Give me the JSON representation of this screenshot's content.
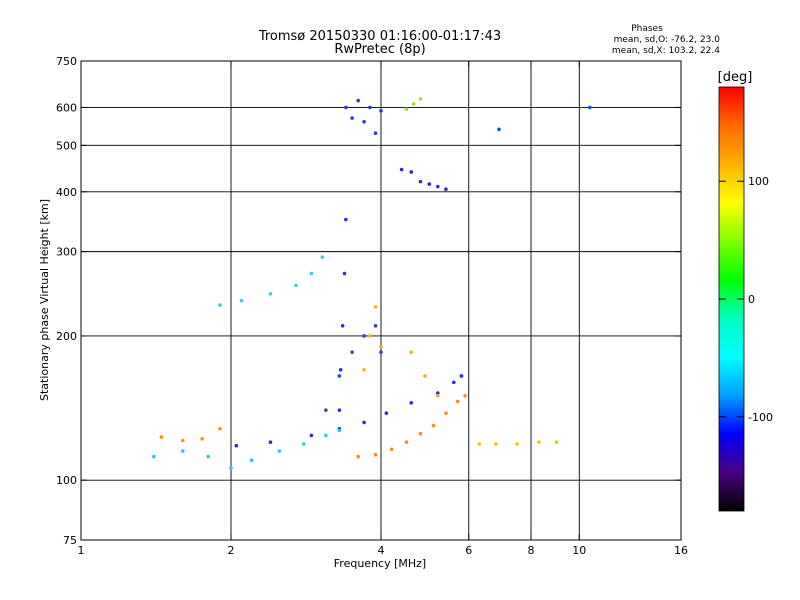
{
  "chart_data": {
    "type": "scatter",
    "title": "Tromsø 20150330 01:16:00-01:17:43",
    "subtitle": "RwPretec (8p)",
    "xlabel": "Frequency [MHz]",
    "ylabel": "Stationary phase Virtual Height [km]",
    "x_scale": "log",
    "y_scale": "log",
    "xlim": [
      1,
      16
    ],
    "ylim": [
      75,
      750
    ],
    "x_ticks": [
      1,
      2,
      4,
      6,
      8,
      10,
      16
    ],
    "x_tick_labels": [
      "1",
      "2",
      "4",
      "6",
      "8",
      "10",
      "16"
    ],
    "y_ticks": [
      75,
      100,
      200,
      300,
      400,
      500,
      600,
      750
    ],
    "y_tick_labels": [
      "75",
      "100",
      "200",
      "300",
      "400",
      "500",
      "600",
      "750"
    ],
    "grid": true,
    "legend": {
      "title": "Phases",
      "entries": [
        "mean, sd,O: -76.2, 23.0",
        "mean, sd,X: 103.2, 22.4"
      ],
      "position": "top-right"
    },
    "colorbar": {
      "label": "[deg]",
      "range": [
        -180,
        180
      ],
      "ticks": [
        100,
        0,
        -100
      ],
      "tick_labels": [
        "100",
        "0",
        "-100"
      ],
      "colormap": "rainbow",
      "stops": [
        "#ff0000",
        "#ff6a00",
        "#ffb000",
        "#ffff00",
        "#7fff00",
        "#00ff00",
        "#00ffc0",
        "#00ffff",
        "#00a0ff",
        "#0000ff",
        "#4b0082",
        "#000000"
      ]
    },
    "traces": [
      {
        "name": "",
        "phase": -100,
        "color": "#2929e6",
        "x": [
          2.05,
          2.4,
          2.9,
          3.3,
          3.7,
          4.1,
          4.6,
          5.2,
          5.6,
          5.8
        ],
        "y": [
          118,
          120,
          124,
          128,
          132,
          138,
          145,
          152,
          160,
          165
        ]
      },
      {
        "name": "",
        "phase": -30,
        "color": "#33c6e8",
        "x": [
          1.4,
          1.6,
          1.8,
          2.0,
          2.2,
          2.5,
          2.8,
          3.1,
          3.3
        ],
        "y": [
          112,
          115,
          112,
          106,
          110,
          115,
          119,
          124,
          127
        ]
      },
      {
        "name": "",
        "phase": 140,
        "color": "#ff8c1a",
        "x": [
          3.6,
          3.9,
          4.2,
          4.5,
          4.8,
          5.1,
          5.4,
          5.7,
          5.9
        ],
        "y": [
          112,
          113,
          116,
          120,
          125,
          130,
          138,
          146,
          150
        ]
      },
      {
        "name": "",
        "phase": 130,
        "color": "#ff8c1a",
        "x": [
          1.45,
          1.6,
          1.75,
          1.9
        ],
        "y": [
          123,
          121,
          122,
          128
        ]
      },
      {
        "name": "",
        "phase": 100,
        "color": "#f5c400",
        "x": [
          6.3,
          6.8,
          7.5,
          8.3,
          9.0
        ],
        "y": [
          119,
          119,
          119,
          120,
          120
        ]
      },
      {
        "name": "",
        "phase": -100,
        "color": "#1c32e0",
        "x": [
          3.3,
          3.32,
          3.35,
          3.38,
          3.4
        ],
        "y": [
          140,
          170,
          210,
          270,
          350
        ]
      },
      {
        "name": "",
        "phase": -100,
        "color": "#3a3ad6",
        "x": [
          3.1,
          3.3,
          3.5,
          3.7,
          3.9,
          4.0
        ],
        "y": [
          140,
          165,
          185,
          200,
          210,
          185
        ]
      },
      {
        "name": "",
        "phase": 110,
        "color": "#f2b21c",
        "x": [
          3.7,
          3.8,
          3.9,
          4.0,
          4.6,
          4.9,
          5.2
        ],
        "y": [
          170,
          200,
          230,
          190,
          185,
          165,
          150
        ]
      },
      {
        "name": "",
        "phase": -20,
        "color": "#39cfe0",
        "x": [
          1.9,
          2.1,
          2.4,
          2.7,
          2.9,
          3.05
        ],
        "y": [
          232,
          237,
          245,
          255,
          270,
          292
        ]
      },
      {
        "name": "",
        "phase": -80,
        "color": "#1f3ee0",
        "x": [
          3.4,
          3.5,
          3.6,
          3.7,
          3.8,
          3.9,
          4.0
        ],
        "y": [
          600,
          570,
          620,
          560,
          600,
          530,
          590
        ]
      },
      {
        "name": "",
        "phase": 40,
        "color": "#9ae03a",
        "x": [
          4.5,
          4.65,
          4.8
        ],
        "y": [
          595,
          610,
          625
        ]
      },
      {
        "name": "",
        "phase": -110,
        "color": "#2a2ad0",
        "x": [
          4.4,
          4.6,
          4.8,
          5.0,
          5.2,
          5.4
        ],
        "y": [
          445,
          440,
          420,
          415,
          410,
          405
        ]
      },
      {
        "name": "",
        "phase": -60,
        "color": "#0055ff",
        "x": [
          6.9,
          10.5
        ],
        "y": [
          540,
          600
        ]
      }
    ]
  }
}
